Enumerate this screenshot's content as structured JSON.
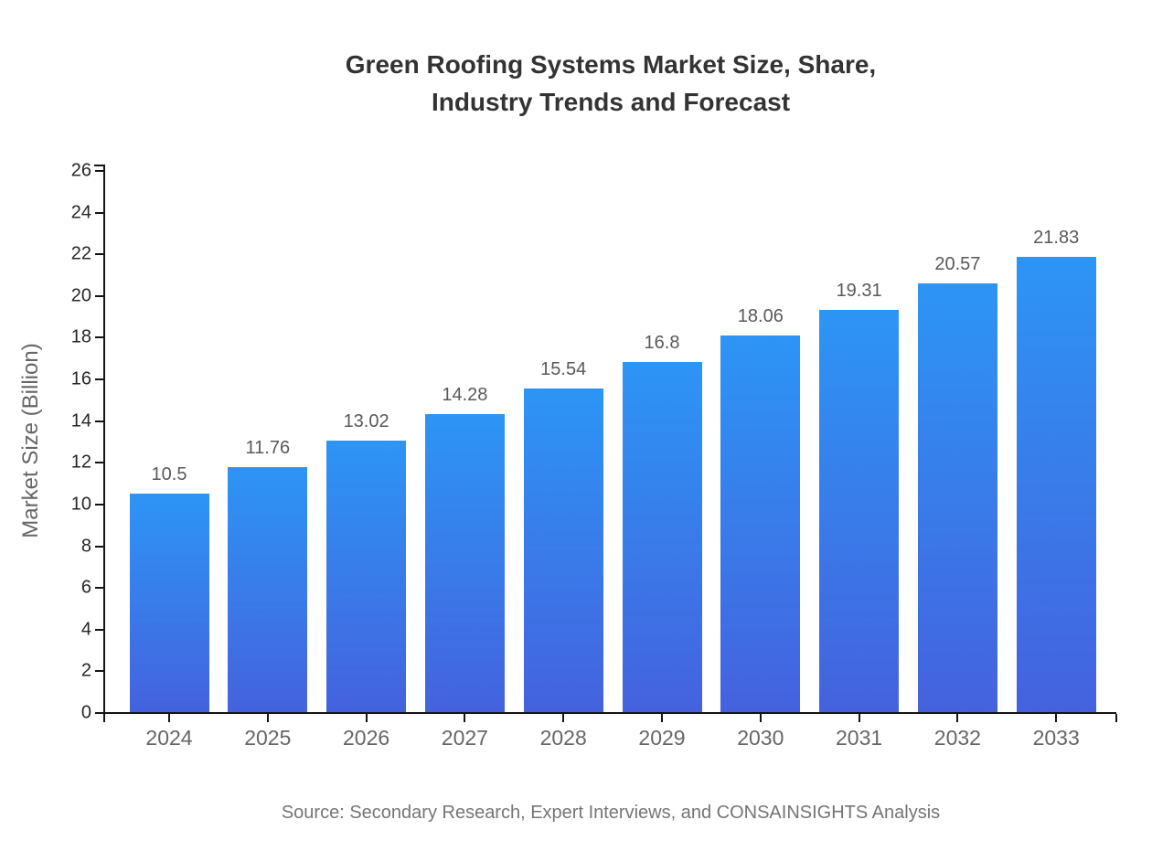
{
  "title": {
    "line1": "Green Roofing Systems Market Size, Share,",
    "line2": "Industry Trends and Forecast"
  },
  "source": "Source: Secondary Research, Expert Interviews, and CONSAINSIGHTS Analysis",
  "chart_data": {
    "type": "bar",
    "title": "Green Roofing Systems Market Size, Share, Industry Trends and Forecast",
    "categories": [
      "2024",
      "2025",
      "2026",
      "2027",
      "2028",
      "2029",
      "2030",
      "2031",
      "2032",
      "2033"
    ],
    "values": [
      10.5,
      11.76,
      13.02,
      14.28,
      15.54,
      16.8,
      18.06,
      19.31,
      20.57,
      21.83
    ],
    "value_labels": [
      "10.5",
      "11.76",
      "13.02",
      "14.28",
      "15.54",
      "16.8",
      "18.06",
      "19.31",
      "20.57",
      "21.83"
    ],
    "xlabel": "",
    "ylabel": "Market Size (Billion)",
    "ylim": [
      0,
      26
    ],
    "yticks": [
      0,
      2,
      4,
      6,
      8,
      10,
      12,
      14,
      16,
      18,
      20,
      22,
      24,
      26
    ],
    "grid": false,
    "legend": "none",
    "bar_color_top": "#2D95F5",
    "bar_color_bottom": "#4562DE",
    "axis_color": "#141414",
    "label_color": "#595959",
    "tick_label_color": "#262626",
    "category_label_color": "#666666"
  }
}
